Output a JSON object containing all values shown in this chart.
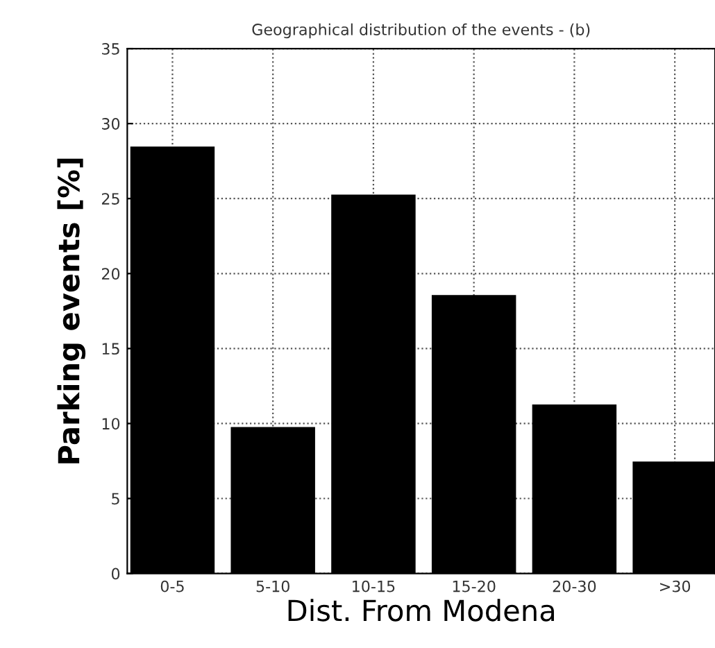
{
  "chart_data": {
    "type": "bar",
    "title": "Geographical distribution of the events - (b)",
    "xlabel": "Dist. From Modena",
    "ylabel": "Parking events [%]",
    "categories": [
      "0-5",
      "5-10",
      "10-15",
      "15-20",
      "20-30",
      ">30"
    ],
    "values": [
      28.4,
      9.7,
      25.2,
      18.5,
      11.2,
      7.4
    ],
    "color": "#000000",
    "ylim": [
      0,
      35
    ],
    "yticks": [
      0,
      5,
      10,
      15,
      20,
      25,
      30,
      35
    ],
    "grid": true,
    "line_style": "dotted"
  }
}
